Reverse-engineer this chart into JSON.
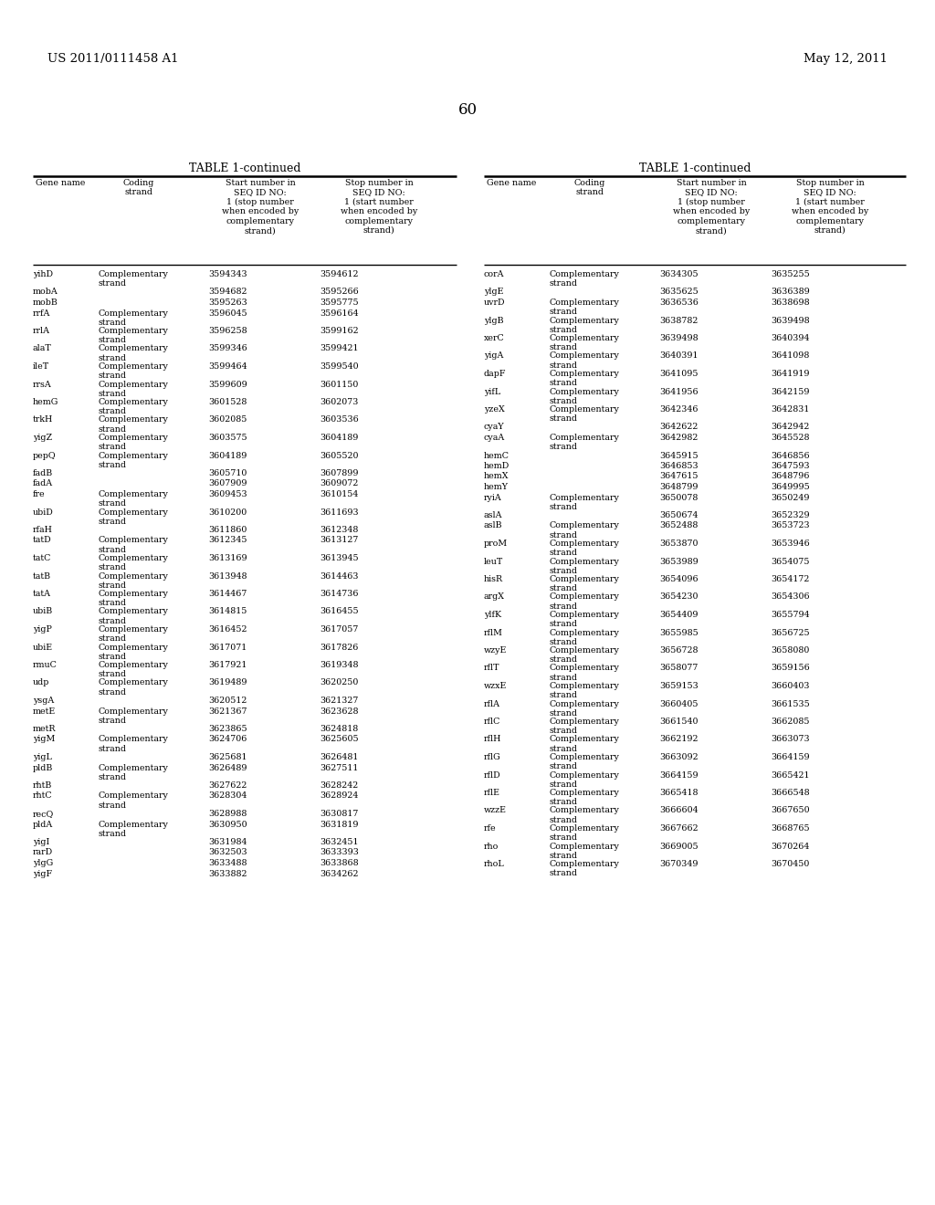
{
  "page_header_left": "US 2011/0111458 A1",
  "page_header_right": "May 12, 2011",
  "page_number": "60",
  "table_title": "TABLE 1-continued",
  "left_table": [
    [
      "yihD",
      "Complementary\nstrand",
      "3594343",
      "3594612"
    ],
    [
      "mobA",
      "",
      "3594682",
      "3595266"
    ],
    [
      "mobB",
      "",
      "3595263",
      "3595775"
    ],
    [
      "rrfA",
      "Complementary\nstrand",
      "3596045",
      "3596164"
    ],
    [
      "rrlA",
      "Complementary\nstrand",
      "3596258",
      "3599162"
    ],
    [
      "alaT",
      "Complementary\nstrand",
      "3599346",
      "3599421"
    ],
    [
      "ileT",
      "Complementary\nstrand",
      "3599464",
      "3599540"
    ],
    [
      "rrsA",
      "Complementary\nstrand",
      "3599609",
      "3601150"
    ],
    [
      "hemG",
      "Complementary\nstrand",
      "3601528",
      "3602073"
    ],
    [
      "trkH",
      "Complementary\nstrand",
      "3602085",
      "3603536"
    ],
    [
      "yigZ",
      "Complementary\nstrand",
      "3603575",
      "3604189"
    ],
    [
      "pepQ",
      "Complementary\nstrand",
      "3604189",
      "3605520"
    ],
    [
      "fadB",
      "",
      "3605710",
      "3607899"
    ],
    [
      "fadA",
      "",
      "3607909",
      "3609072"
    ],
    [
      "fre",
      "Complementary\nstrand",
      "3609453",
      "3610154"
    ],
    [
      "ubiD",
      "Complementary\nstrand",
      "3610200",
      "3611693"
    ],
    [
      "rfaH",
      "",
      "3611860",
      "3612348"
    ],
    [
      "tatD",
      "Complementary\nstrand",
      "3612345",
      "3613127"
    ],
    [
      "tatC",
      "Complementary\nstrand",
      "3613169",
      "3613945"
    ],
    [
      "tatB",
      "Complementary\nstrand",
      "3613948",
      "3614463"
    ],
    [
      "tatA",
      "Complementary\nstrand",
      "3614467",
      "3614736"
    ],
    [
      "ubiB",
      "Complementary\nstrand",
      "3614815",
      "3616455"
    ],
    [
      "yigP",
      "Complementary\nstrand",
      "3616452",
      "3617057"
    ],
    [
      "ubiE",
      "Complementary\nstrand",
      "3617071",
      "3617826"
    ],
    [
      "rmuC",
      "Complementary\nstrand",
      "3617921",
      "3619348"
    ],
    [
      "udp",
      "Complementary\nstrand",
      "3619489",
      "3620250"
    ],
    [
      "ysgA",
      "",
      "3620512",
      "3621327"
    ],
    [
      "metE",
      "Complementary\nstrand",
      "3621367",
      "3623628"
    ],
    [
      "metR",
      "",
      "3623865",
      "3624818"
    ],
    [
      "yigM",
      "Complementary\nstrand",
      "3624706",
      "3625605"
    ],
    [
      "yigL",
      "",
      "3625681",
      "3626481"
    ],
    [
      "pldB",
      "Complementary\nstrand",
      "3626489",
      "3627511"
    ],
    [
      "rhtB",
      "",
      "3627622",
      "3628242"
    ],
    [
      "rhtC",
      "Complementary\nstrand",
      "3628304",
      "3628924"
    ],
    [
      "recQ",
      "",
      "3628988",
      "3630817"
    ],
    [
      "pldA",
      "Complementary\nstrand",
      "3630950",
      "3631819"
    ],
    [
      "yigI",
      "",
      "3631984",
      "3632451"
    ],
    [
      "rarD",
      "",
      "3632503",
      "3633393"
    ],
    [
      "ylgG",
      "",
      "3633488",
      "3633868"
    ],
    [
      "yigF",
      "",
      "3633882",
      "3634262"
    ]
  ],
  "right_table": [
    [
      "corA",
      "Complementary\nstrand",
      "3634305",
      "3635255"
    ],
    [
      "ylgE",
      "",
      "3635625",
      "3636389"
    ],
    [
      "uvrD",
      "Complementary\nstrand",
      "3636536",
      "3638698"
    ],
    [
      "ylgB",
      "Complementary\nstrand",
      "3638782",
      "3639498"
    ],
    [
      "xerC",
      "Complementary\nstrand",
      "3639498",
      "3640394"
    ],
    [
      "yigA",
      "Complementary\nstrand",
      "3640391",
      "3641098"
    ],
    [
      "dapF",
      "Complementary\nstrand",
      "3641095",
      "3641919"
    ],
    [
      "yifL",
      "Complementary\nstrand",
      "3641956",
      "3642159"
    ],
    [
      "yzeX",
      "Complementary\nstrand",
      "3642346",
      "3642831"
    ],
    [
      "cyaY",
      "",
      "3642622",
      "3642942"
    ],
    [
      "cyaA",
      "Complementary\nstrand",
      "3642982",
      "3645528"
    ],
    [
      "hemC",
      "",
      "3645915",
      "3646856"
    ],
    [
      "hemD",
      "",
      "3646853",
      "3647593"
    ],
    [
      "hemX",
      "",
      "3647615",
      "3648796"
    ],
    [
      "hemY",
      "",
      "3648799",
      "3649995"
    ],
    [
      "ryiA",
      "Complementary\nstrand",
      "3650078",
      "3650249"
    ],
    [
      "aslA",
      "",
      "3650674",
      "3652329"
    ],
    [
      "aslB",
      "Complementary\nstrand",
      "3652488",
      "3653723"
    ],
    [
      "proM",
      "Complementary\nstrand",
      "3653870",
      "3653946"
    ],
    [
      "leuT",
      "Complementary\nstrand",
      "3653989",
      "3654075"
    ],
    [
      "hisR",
      "Complementary\nstrand",
      "3654096",
      "3654172"
    ],
    [
      "argX",
      "Complementary\nstrand",
      "3654230",
      "3654306"
    ],
    [
      "ylfK",
      "Complementary\nstrand",
      "3654409",
      "3655794"
    ],
    [
      "rflM",
      "Complementary\nstrand",
      "3655985",
      "3656725"
    ],
    [
      "wzyE",
      "Complementary\nstrand",
      "3656728",
      "3658080"
    ],
    [
      "rflT",
      "Complementary\nstrand",
      "3658077",
      "3659156"
    ],
    [
      "wzxE",
      "Complementary\nstrand",
      "3659153",
      "3660403"
    ],
    [
      "rflA",
      "Complementary\nstrand",
      "3660405",
      "3661535"
    ],
    [
      "rflC",
      "Complementary\nstrand",
      "3661540",
      "3662085"
    ],
    [
      "rflH",
      "Complementary\nstrand",
      "3662192",
      "3663073"
    ],
    [
      "rflG",
      "Complementary\nstrand",
      "3663092",
      "3664159"
    ],
    [
      "rflD",
      "Complementary\nstrand",
      "3664159",
      "3665421"
    ],
    [
      "rflE",
      "Complementary\nstrand",
      "3665418",
      "3666548"
    ],
    [
      "wzzE",
      "Complementary\nstrand",
      "3666604",
      "3667650"
    ],
    [
      "rfe",
      "Complementary\nstrand",
      "3667662",
      "3668765"
    ],
    [
      "rho",
      "Complementary\nstrand",
      "3669005",
      "3670264"
    ],
    [
      "rhoL",
      "Complementary\nstrand",
      "3670349",
      "3670450"
    ]
  ],
  "bg_color": "#ffffff",
  "text_color": "#000000",
  "font_size": 6.8,
  "header_font_size": 6.8,
  "title_font_size": 9.0
}
